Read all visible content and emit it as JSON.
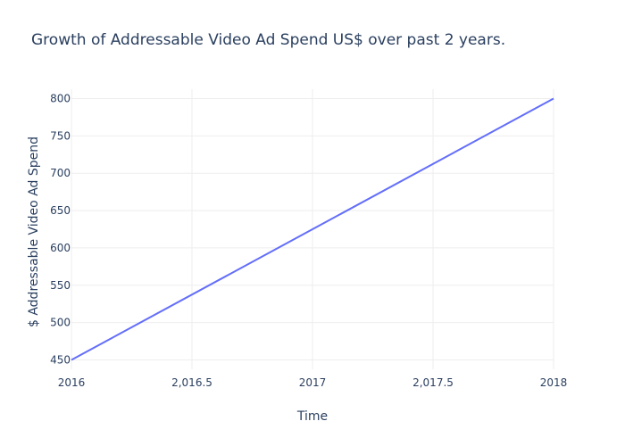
{
  "chart_data": {
    "type": "line",
    "title": "Growth of Addressable Video Ad Spend US$ over past 2 years.",
    "xlabel": "Time",
    "ylabel": "$ Addressable Video Ad Spend",
    "x": [
      2016,
      2018
    ],
    "series": [
      {
        "values": [
          450,
          800
        ],
        "color": "#636efa"
      }
    ],
    "xlim": [
      2016,
      2018
    ],
    "ylim": [
      437.5,
      812.5
    ],
    "x_ticks": [
      {
        "value": 2016,
        "label": "2016"
      },
      {
        "value": 2016.5,
        "label": "2,016.5"
      },
      {
        "value": 2017,
        "label": "2017"
      },
      {
        "value": 2017.5,
        "label": "2,017.5"
      },
      {
        "value": 2018,
        "label": "2018"
      }
    ],
    "y_ticks": [
      {
        "value": 450,
        "label": "450"
      },
      {
        "value": 500,
        "label": "500"
      },
      {
        "value": 550,
        "label": "550"
      },
      {
        "value": 600,
        "label": "600"
      },
      {
        "value": 650,
        "label": "650"
      },
      {
        "value": 700,
        "label": "700"
      },
      {
        "value": 750,
        "label": "750"
      },
      {
        "value": 800,
        "label": "800"
      }
    ],
    "grid": true,
    "legend": "none"
  }
}
